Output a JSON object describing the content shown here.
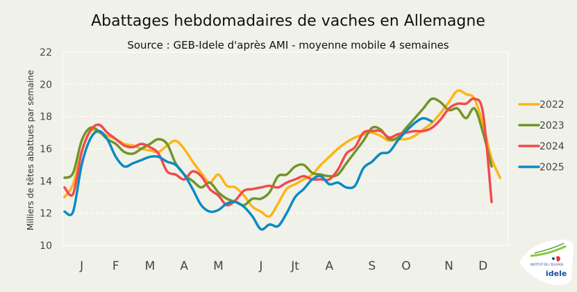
{
  "chart_data": {
    "type": "line",
    "title": "Abattages hebdomadaires de vaches en Allemagne",
    "subtitle": "Source : GEB-Idele d'après AMI - moyenne mobile 4 semaines",
    "ylabel": "Milliers de têtes abattues par semaine",
    "xlabel": "",
    "ylim": [
      10,
      22
    ],
    "yticks": [
      10,
      12,
      14,
      16,
      18,
      20,
      22
    ],
    "x_unit": "week",
    "month_labels": [
      {
        "label": "J",
        "week": 3
      },
      {
        "label": "F",
        "week": 7
      },
      {
        "label": "M",
        "week": 11
      },
      {
        "label": "A",
        "week": 15
      },
      {
        "label": "M",
        "week": 19
      },
      {
        "label": "J",
        "week": 24
      },
      {
        "label": "Jt",
        "week": 28
      },
      {
        "label": "A",
        "week": 32
      },
      {
        "label": "S",
        "week": 37
      },
      {
        "label": "O",
        "week": 41
      },
      {
        "label": "N",
        "week": 46
      },
      {
        "label": "D",
        "week": 50
      }
    ],
    "grid": "horizontal dashed",
    "legend_position": "right",
    "series": [
      {
        "name": "2022",
        "color": "#fdb515",
        "values": [
          13.0,
          13.8,
          15.8,
          17.1,
          17.0,
          16.8,
          16.6,
          16.3,
          16.2,
          16.0,
          15.9,
          15.8,
          16.2,
          16.5,
          16.0,
          15.2,
          14.5,
          13.9,
          14.4,
          13.7,
          13.6,
          13.1,
          12.4,
          12.1,
          11.8,
          12.6,
          13.5,
          13.8,
          14.1,
          14.4,
          15.0,
          15.5,
          16.0,
          16.4,
          16.7,
          16.9,
          17.0,
          16.8,
          16.5,
          16.6,
          16.6,
          16.8,
          17.2,
          17.6,
          18.2,
          18.9,
          19.6,
          19.4,
          19.1,
          17.5,
          15.4,
          14.2
        ]
      },
      {
        "name": "2023",
        "color": "#6f952a",
        "values": [
          14.2,
          14.5,
          16.5,
          17.3,
          17.1,
          16.6,
          16.3,
          15.8,
          15.7,
          16.0,
          16.3,
          16.6,
          16.3,
          15.1,
          14.4,
          14.0,
          13.6,
          13.9,
          13.3,
          12.9,
          12.7,
          12.5,
          12.9,
          12.9,
          13.3,
          14.3,
          14.4,
          14.9,
          15.0,
          14.5,
          14.4,
          14.3,
          14.4,
          15.1,
          15.8,
          16.5,
          17.3,
          17.2,
          16.6,
          16.7,
          17.3,
          17.9,
          18.5,
          19.1,
          18.9,
          18.4,
          18.5,
          17.9,
          18.5,
          17.0,
          14.9
        ]
      },
      {
        "name": "2024",
        "color": "#f24a4e",
        "values": [
          13.6,
          13.2,
          15.8,
          17.1,
          17.5,
          17.0,
          16.6,
          16.2,
          16.1,
          16.3,
          16.1,
          15.7,
          14.6,
          14.4,
          14.1,
          14.6,
          14.3,
          13.5,
          13.1,
          12.5,
          12.8,
          13.4,
          13.5,
          13.6,
          13.7,
          13.6,
          13.9,
          14.1,
          14.3,
          14.1,
          14.1,
          14.1,
          14.7,
          15.7,
          16.1,
          17.0,
          17.1,
          17.1,
          16.7,
          16.9,
          17.0,
          17.1,
          17.1,
          17.3,
          17.8,
          18.5,
          18.8,
          18.8,
          19.1,
          18.2,
          12.7
        ]
      },
      {
        "name": "2025",
        "color": "#0b8ac4",
        "values": [
          12.1,
          12.1,
          15.0,
          16.6,
          17.1,
          16.6,
          15.5,
          14.9,
          15.1,
          15.3,
          15.5,
          15.5,
          15.2,
          15.0,
          14.4,
          13.5,
          12.5,
          12.1,
          12.2,
          12.6,
          12.7,
          12.4,
          11.8,
          11.0,
          11.3,
          11.2,
          12.0,
          13.0,
          13.5,
          14.1,
          14.3,
          13.8,
          13.9,
          13.6,
          13.7,
          14.8,
          15.2,
          15.7,
          15.8,
          16.5,
          17.1,
          17.6,
          17.9,
          17.7
        ]
      }
    ]
  },
  "logo": {
    "text": "INSTITUT DE L'ÉLEVAGE",
    "brand": "idele"
  },
  "colors": {
    "background": "#f0f1e8",
    "grid": "#ffffff",
    "text": "#1a1a1a",
    "axis_text": "#444444"
  }
}
